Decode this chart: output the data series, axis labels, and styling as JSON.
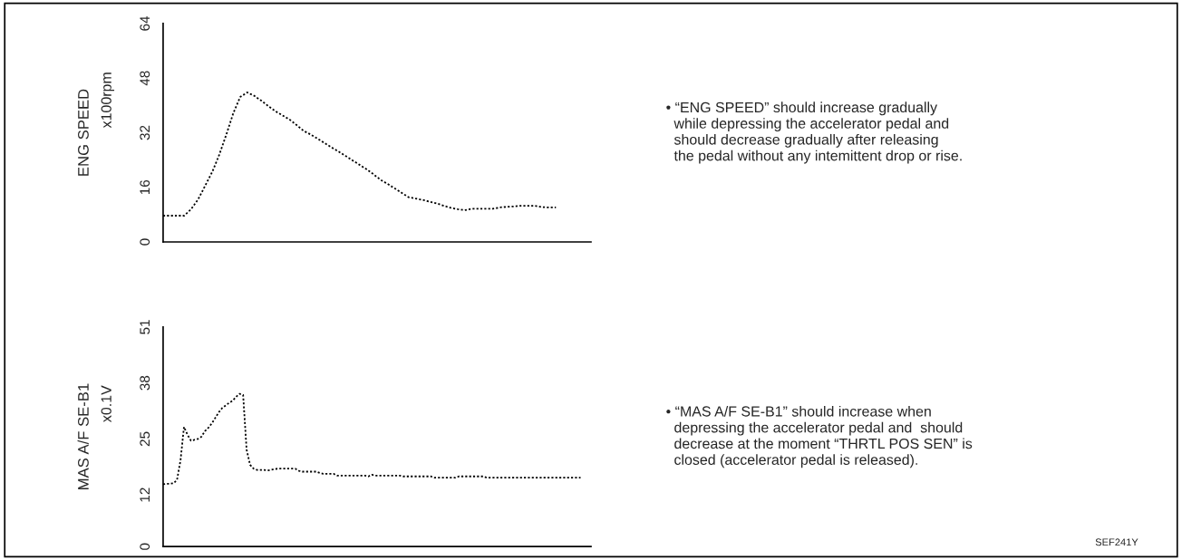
{
  "chart_data": [
    {
      "type": "line",
      "ylabel": "ENG SPEED",
      "line_style": "dotted",
      "grid": false,
      "tick_labels": "y",
      "ylim": [
        0,
        64
      ],
      "yticks": [
        0,
        16,
        32,
        48,
        64
      ],
      "annotations": [
        "x100rpm",
        "• “ENG SPEED” should increase gradually\n  while depressing the accelerator pedal and\n  should decrease gradually after releasing\n  the pedal without any intemittent drop or rise."
      ],
      "categories": [
        null,
        null,
        null,
        null,
        null,
        null,
        null,
        null,
        null,
        null,
        null,
        null,
        null,
        null,
        null,
        null,
        null,
        null,
        null,
        null,
        null,
        null,
        null,
        null,
        null,
        null,
        null,
        null,
        null,
        null,
        null,
        null,
        null,
        null,
        null,
        null,
        null,
        null,
        null,
        null,
        null,
        null,
        null,
        null,
        null,
        null,
        null,
        null,
        null,
        null,
        null,
        null,
        null,
        null,
        null,
        null,
        null,
        null,
        null,
        null,
        null,
        null
      ],
      "series": [
        {
          "color": "#000000",
          "values": [
            7.7,
            7.7,
            7.7,
            7.7,
            9.6,
            12.5,
            16.5,
            20.5,
            25.5,
            31.4,
            37.7,
            42.5,
            43.8,
            42.8,
            41.4,
            39.8,
            38.3,
            37.1,
            35.9,
            34.3,
            32.6,
            31.5,
            30.3,
            29,
            27.7,
            26.5,
            25.2,
            23.9,
            22.6,
            21.3,
            19.8,
            18.2,
            17,
            15.7,
            14.4,
            13.1,
            12.7,
            12.3,
            11.8,
            11.3,
            10.6,
            10,
            9.6,
            9.3,
            9.7,
            9.7,
            9.7,
            9.7,
            10.1,
            10.3,
            10.4,
            10.6,
            10.6,
            10.6,
            10.2,
            10.1,
            10.1,
            null,
            null,
            null,
            null,
            null
          ]
        }
      ]
    },
    {
      "type": "line",
      "ylabel": "MAS A/F SE-B1",
      "line_style": "dotted",
      "grid": false,
      "tick_labels": "y",
      "ylim": [
        0,
        51
      ],
      "yticks": [
        0,
        12,
        25,
        38,
        51
      ],
      "annotations": [
        "x0.1V",
        "• “MAS A/F SE-B1” should increase when\n  depressing the accelerator pedal and  should\n  decrease at the moment “THRTL POS SEN” is\n  closed (accelerator pedal is released).",
        "SEF241Y"
      ],
      "categories": [
        null,
        null,
        null,
        null,
        null,
        null,
        null,
        null,
        null,
        null,
        null,
        null,
        null,
        null,
        null,
        null,
        null,
        null,
        null,
        null,
        null,
        null,
        null,
        null,
        null,
        null,
        null,
        null,
        null,
        null,
        null,
        null,
        null,
        null,
        null,
        null,
        null,
        null,
        null,
        null,
        null,
        null,
        null,
        null,
        null,
        null,
        null,
        null,
        null,
        null,
        null,
        null,
        null,
        null,
        null,
        null,
        null,
        null,
        null,
        null,
        null,
        null,
        null,
        null,
        null,
        null,
        null,
        null,
        null,
        null,
        null,
        null,
        null,
        null,
        null,
        null,
        null,
        null,
        null,
        null,
        null,
        null,
        null,
        null,
        null,
        null,
        null,
        null,
        null,
        null,
        null,
        null,
        null,
        null,
        null,
        null,
        null,
        null,
        null,
        null,
        null,
        null,
        null,
        null,
        null,
        null,
        null,
        null,
        null,
        null,
        null,
        null,
        null,
        null,
        null,
        null,
        null,
        null,
        null,
        null,
        null,
        null,
        null,
        null
      ],
      "series": [
        {
          "color": "#000000",
          "values": [
            14.5,
            14.6,
            14.6,
            14.7,
            15.5,
            20,
            27.8,
            26,
            24.6,
            24.8,
            25,
            25.5,
            26.8,
            27.6,
            28.6,
            29.9,
            31.2,
            32.2,
            32.8,
            33.4,
            33.9,
            34.8,
            35.5,
            35.2,
            22.5,
            19,
            18.1,
            17.8,
            17.8,
            17.8,
            17.7,
            17.8,
            18,
            18.1,
            18.1,
            18.1,
            18.1,
            18.1,
            18.1,
            17.6,
            17.4,
            17.4,
            17.4,
            17.4,
            17.4,
            17.1,
            16.9,
            16.9,
            16.9,
            16.9,
            16.5,
            16.5,
            16.5,
            16.5,
            16.5,
            16.5,
            16.5,
            16.5,
            16.5,
            16.3,
            16.7,
            16.5,
            16.5,
            16.5,
            16.5,
            16.5,
            16.5,
            16.5,
            16.5,
            16.3,
            16.3,
            16.3,
            16.3,
            16.3,
            16.3,
            16.3,
            16.3,
            16.3,
            16,
            16,
            16,
            16,
            16,
            16,
            16,
            16.3,
            16.3,
            16.3,
            16.3,
            16.3,
            16.3,
            16.3,
            16.3,
            16,
            16,
            16,
            16,
            16,
            16,
            16,
            16,
            16,
            16,
            16,
            16,
            16,
            16,
            16,
            16,
            16,
            16,
            16,
            16,
            16,
            16,
            16,
            16,
            16,
            16,
            16,
            16,
            null,
            null,
            null
          ]
        }
      ]
    }
  ]
}
